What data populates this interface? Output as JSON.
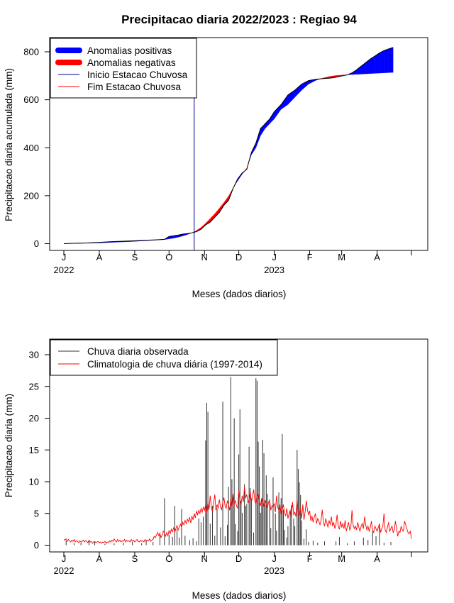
{
  "colors": {
    "positive": "#0000ff",
    "negative": "#ff0000",
    "start_line": "#00008b",
    "end_line": "#ff0000",
    "observed": "#333333",
    "climatology": "#ff0000"
  },
  "chart_data": [
    {
      "type": "area",
      "title": "Precipitacao diaria 2022/2023 : Regiao 94",
      "xlabel": "Meses (dados diarios)",
      "ylabel": "Precipitacao diaria acumulada (mm)",
      "xlim": [
        0,
        306
      ],
      "ylim": [
        0,
        800
      ],
      "yticks": [
        0,
        200,
        400,
        600,
        800
      ],
      "xticks": [
        {
          "day": 0,
          "label": "J"
        },
        {
          "day": 31,
          "label": "A"
        },
        {
          "day": 62,
          "label": "S"
        },
        {
          "day": 92,
          "label": "O"
        },
        {
          "day": 123,
          "label": "N"
        },
        {
          "day": 153,
          "label": "D"
        },
        {
          "day": 184,
          "label": "J"
        },
        {
          "day": 215,
          "label": "F"
        },
        {
          "day": 243,
          "label": "M"
        },
        {
          "day": 274,
          "label": "A"
        },
        {
          "day": 304,
          "label": ""
        }
      ],
      "year_labels": [
        {
          "day": 0,
          "label": "2022"
        },
        {
          "day": 184,
          "label": "2023"
        }
      ],
      "start_rainy_season_day": 114,
      "legend": {
        "position": "top-left",
        "entries": [
          "Anomalias positivas",
          "Anomalias negativas",
          "Inicio Estacao Chuvosa",
          "Fim Estacao Chuvosa"
        ]
      },
      "x_days": [
        0,
        10,
        20,
        30,
        40,
        50,
        60,
        70,
        80,
        88,
        92,
        96,
        100,
        104,
        108,
        112,
        116,
        120,
        124,
        128,
        132,
        136,
        140,
        144,
        148,
        152,
        156,
        160,
        164,
        168,
        172,
        176,
        180,
        184,
        190,
        196,
        202,
        208,
        214,
        220,
        226,
        232,
        236,
        240,
        244,
        248,
        252,
        256,
        260,
        264,
        268,
        272,
        276,
        280,
        284,
        288
      ],
      "observed_cumulative": [
        0,
        2,
        3,
        5,
        8,
        10,
        12,
        14,
        16,
        18,
        30,
        33,
        36,
        40,
        42,
        45,
        50,
        60,
        78,
        90,
        110,
        130,
        160,
        180,
        230,
        270,
        295,
        310,
        380,
        420,
        480,
        500,
        520,
        550,
        580,
        620,
        640,
        665,
        680,
        685,
        688,
        690,
        692,
        696,
        700,
        704,
        712,
        725,
        740,
        755,
        770,
        782,
        795,
        805,
        812,
        818
      ],
      "climatology_cumulative": [
        0,
        1,
        2,
        3,
        5,
        7,
        9,
        12,
        15,
        17,
        20,
        23,
        27,
        32,
        38,
        45,
        55,
        68,
        85,
        105,
        125,
        148,
        172,
        198,
        232,
        262,
        290,
        315,
        370,
        400,
        450,
        480,
        500,
        520,
        560,
        580,
        610,
        640,
        665,
        680,
        690,
        697,
        700,
        702,
        703,
        704,
        705,
        706,
        707,
        708,
        709,
        710,
        711,
        712,
        713,
        714
      ]
    },
    {
      "type": "bar",
      "xlabel": "Meses (dados diarios)",
      "ylabel": "Precipitacao diaria (mm)",
      "xlim": [
        0,
        306
      ],
      "ylim": [
        0,
        30
      ],
      "yticks": [
        0,
        5,
        10,
        15,
        20,
        25,
        30
      ],
      "xticks": [
        {
          "day": 0,
          "label": "J"
        },
        {
          "day": 31,
          "label": "A"
        },
        {
          "day": 62,
          "label": "S"
        },
        {
          "day": 92,
          "label": "O"
        },
        {
          "day": 123,
          "label": "N"
        },
        {
          "day": 153,
          "label": "D"
        },
        {
          "day": 184,
          "label": "J"
        },
        {
          "day": 215,
          "label": "F"
        },
        {
          "day": 243,
          "label": "M"
        },
        {
          "day": 274,
          "label": "A"
        },
        {
          "day": 304,
          "label": ""
        }
      ],
      "year_labels": [
        {
          "day": 0,
          "label": "2022"
        },
        {
          "day": 184,
          "label": "2023"
        }
      ],
      "legend": {
        "position": "top-left",
        "entries": [
          "Chuva diaria observada",
          "Climatologia de chuva diária (1997-2014)"
        ]
      },
      "observed_bars": [
        [
          2,
          0.7
        ],
        [
          9,
          0.3
        ],
        [
          15,
          0.4
        ],
        [
          22,
          0.6
        ],
        [
          27,
          0.5
        ],
        [
          36,
          0.2
        ],
        [
          44,
          0.3
        ],
        [
          52,
          0.4
        ],
        [
          60,
          0.5
        ],
        [
          68,
          0.3
        ],
        [
          72,
          0.8
        ],
        [
          78,
          0.5
        ],
        [
          84,
          2.0
        ],
        [
          88,
          7.4
        ],
        [
          92,
          1.6
        ],
        [
          95,
          1.3
        ],
        [
          97,
          6.2
        ],
        [
          99,
          2.5
        ],
        [
          101,
          1.2
        ],
        [
          103,
          5.7
        ],
        [
          106,
          1.5
        ],
        [
          110,
          0.8
        ],
        [
          113,
          1.1
        ],
        [
          116,
          0.6
        ],
        [
          118,
          4.2
        ],
        [
          120,
          3.6
        ],
        [
          122,
          4.5
        ],
        [
          124,
          16.5
        ],
        [
          125,
          22.4
        ],
        [
          126,
          21.0
        ],
        [
          128,
          3.4
        ],
        [
          130,
          6.2
        ],
        [
          132,
          1.5
        ],
        [
          134,
          5.8
        ],
        [
          137,
          2.8
        ],
        [
          139,
          22.6
        ],
        [
          141,
          1.4
        ],
        [
          143,
          3.2
        ],
        [
          144,
          9.2
        ],
        [
          146,
          26.5
        ],
        [
          147,
          10.4
        ],
        [
          148,
          7.5
        ],
        [
          149,
          20.0
        ],
        [
          150,
          3.3
        ],
        [
          152,
          2.2
        ],
        [
          153,
          14.3
        ],
        [
          154,
          21.4
        ],
        [
          155,
          7.0
        ],
        [
          156,
          5.1
        ],
        [
          158,
          9.6
        ],
        [
          159,
          6.2
        ],
        [
          160,
          6.5
        ],
        [
          162,
          15.5
        ],
        [
          163,
          9.0
        ],
        [
          164,
          7.4
        ],
        [
          166,
          2.0
        ],
        [
          168,
          26.3
        ],
        [
          169,
          25.9
        ],
        [
          170,
          16.3
        ],
        [
          171,
          12.4
        ],
        [
          172,
          5.1
        ],
        [
          173,
          7.4
        ],
        [
          174,
          16.6
        ],
        [
          175,
          14.5
        ],
        [
          176,
          6.4
        ],
        [
          177,
          11.0
        ],
        [
          178,
          8.1
        ],
        [
          180,
          7.2
        ],
        [
          181,
          2.7
        ],
        [
          183,
          10.7
        ],
        [
          185,
          5.0
        ],
        [
          186,
          2.3
        ],
        [
          188,
          8.3
        ],
        [
          189,
          6.4
        ],
        [
          190,
          7.4
        ],
        [
          191,
          17.5
        ],
        [
          192,
          5.6
        ],
        [
          193,
          2.4
        ],
        [
          195,
          1.2
        ],
        [
          196,
          3.0
        ],
        [
          198,
          5.3
        ],
        [
          199,
          6.3
        ],
        [
          201,
          4.2
        ],
        [
          202,
          3.0
        ],
        [
          204,
          15.0
        ],
        [
          205,
          12.0
        ],
        [
          206,
          9.9
        ],
        [
          207,
          7.9
        ],
        [
          208,
          3.9
        ],
        [
          210,
          1.0
        ],
        [
          212,
          2.5
        ],
        [
          214,
          0.5
        ],
        [
          218,
          0.7
        ],
        [
          222,
          0.4
        ],
        [
          228,
          0.6
        ],
        [
          238,
          0.6
        ],
        [
          241,
          1.3
        ],
        [
          248,
          0.3
        ],
        [
          254,
          0.6
        ],
        [
          262,
          1.2
        ],
        [
          266,
          0.8
        ],
        [
          270,
          2.2
        ],
        [
          273,
          1.4
        ],
        [
          276,
          3.0
        ],
        [
          280,
          0.4
        ],
        [
          286,
          0.5
        ]
      ],
      "climatology": [
        0.9,
        0.8,
        1.0,
        0.6,
        0.9,
        0.7,
        0.5,
        0.8,
        0.6,
        0.9,
        0.5,
        0.7,
        0.6,
        0.4,
        0.7,
        0.5,
        0.6,
        0.8,
        0.5,
        0.7,
        0.6,
        0.4,
        0.8,
        0.5,
        0.6,
        0.3,
        0.5,
        0.6,
        0.4,
        0.5,
        0.6,
        0.4,
        0.5,
        0.3,
        0.5,
        0.4,
        0.6,
        0.3,
        0.5,
        0.4,
        0.7,
        0.5,
        0.8,
        0.6,
        1.0,
        0.7,
        0.5,
        0.9,
        0.6,
        0.8,
        0.5,
        0.7,
        0.6,
        0.9,
        0.5,
        0.8,
        0.6,
        0.7,
        0.5,
        0.9,
        0.6,
        0.8,
        0.5,
        0.7,
        0.9,
        0.6,
        0.5,
        0.8,
        0.6,
        0.7,
        0.5,
        0.9,
        0.6,
        0.8,
        0.7,
        1.0,
        0.6,
        0.8,
        0.9,
        1.4,
        1.2,
        1.6,
        2.0,
        1.5,
        1.8,
        1.2,
        1.6,
        2.2,
        1.9,
        1.4,
        2.0,
        1.5,
        2.3,
        1.8,
        2.5,
        2.1,
        2.8,
        2.0,
        2.6,
        3.1,
        2.4,
        2.9,
        3.3,
        2.8,
        3.6,
        3.2,
        3.9,
        3.4,
        4.1,
        3.7,
        4.4,
        3.5,
        4.6,
        4.0,
        5.0,
        4.3,
        5.4,
        4.8,
        5.5,
        5.0,
        5.8,
        5.2,
        6.0,
        5.5,
        6.4,
        5.1,
        6.8,
        5.6,
        7.8,
        6.0,
        5.2,
        6.6,
        8.0,
        5.5,
        6.4,
        5.8,
        7.2,
        6.0,
        5.6,
        6.8,
        7.5,
        6.2,
        5.8,
        7.0,
        6.4,
        5.5,
        7.2,
        6.0,
        8.1,
        6.5,
        7.0,
        6.2,
        5.8,
        8.6,
        7.1,
        6.4,
        7.8,
        6.8,
        9.2,
        7.4,
        8.0,
        6.6,
        7.2,
        8.4,
        6.8,
        7.5,
        8.8,
        7.0,
        6.5,
        7.6,
        8.2,
        6.9,
        6.2,
        7.4,
        6.8,
        5.9,
        7.1,
        6.4,
        5.8,
        6.8,
        7.0,
        5.5,
        6.2,
        5.9,
        6.6,
        5.2,
        7.8,
        6.0,
        5.5,
        6.2,
        4.8,
        5.6,
        6.4,
        5.1,
        4.6,
        5.8,
        4.2,
        5.0,
        5.5,
        4.4,
        6.8,
        4.8,
        5.2,
        4.5,
        7.2,
        5.0,
        4.6,
        5.8,
        4.2,
        6.4,
        4.0,
        5.2,
        7.0,
        5.6,
        4.8,
        5.4,
        3.8,
        4.6,
        3.6,
        4.4,
        5.0,
        3.4,
        4.2,
        3.8,
        3.2,
        4.0,
        5.6,
        3.6,
        3.0,
        4.2,
        3.5,
        2.8,
        3.9,
        3.2,
        4.5,
        3.0,
        3.6,
        2.6,
        3.3,
        4.8,
        3.0,
        2.5,
        3.8,
        2.8,
        3.4,
        2.6,
        3.9,
        2.2,
        3.0,
        3.6,
        2.4,
        2.8,
        5.5,
        3.2,
        2.6,
        3.0,
        2.4,
        3.6,
        2.8,
        2.2,
        3.0,
        3.4,
        2.6,
        4.5,
        3.2,
        2.4,
        3.0,
        2.2,
        2.8,
        3.8,
        2.4,
        2.0,
        3.0,
        2.6,
        2.2,
        2.8,
        3.4,
        2.0,
        2.6,
        3.0,
        5.0,
        2.4,
        2.0,
        2.8,
        3.6,
        2.2,
        2.6,
        3.0,
        2.0,
        2.4,
        3.8,
        2.6,
        1.4,
        2.2,
        2.0,
        3.0,
        2.4,
        2.2,
        3.8,
        3.2,
        2.6,
        2.0,
        1.8,
        2.2,
        1.0
      ]
    }
  ]
}
